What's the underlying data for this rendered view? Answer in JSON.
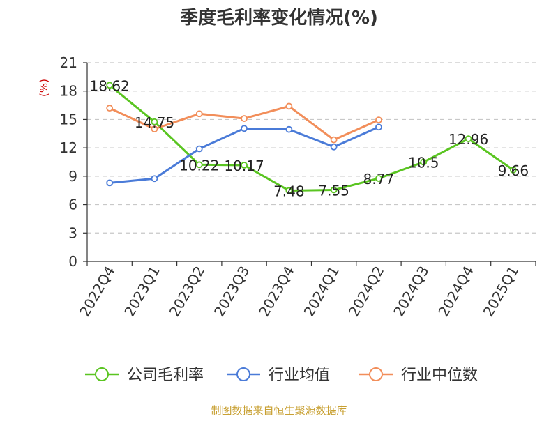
{
  "chart_data": {
    "type": "line",
    "title": "季度毛利率变化情况(%)",
    "ylabel": "(%)",
    "categories": [
      "2022Q4",
      "2023Q1",
      "2023Q2",
      "2023Q3",
      "2023Q4",
      "2024Q1",
      "2024Q2",
      "2024Q3",
      "2024Q4",
      "2025Q1"
    ],
    "ylim": [
      0,
      21
    ],
    "yticks": [
      0,
      3,
      6,
      9,
      12,
      15,
      18,
      21
    ],
    "grid": true,
    "legend_position": "bottom",
    "series": [
      {
        "name": "公司毛利率",
        "color": "#5ac521",
        "values": [
          18.62,
          14.75,
          10.22,
          10.17,
          7.48,
          7.55,
          8.77,
          10.5,
          12.96,
          9.66
        ],
        "labels": [
          "18.62",
          "14.75",
          "10.22",
          "10.17",
          "7.48",
          "7.55",
          "8.77",
          "10.5",
          "12.96",
          "9.66"
        ]
      },
      {
        "name": "行业均值",
        "color": "#4a7bd8",
        "values": [
          8.3,
          8.75,
          11.9,
          14.05,
          13.95,
          12.1,
          14.2,
          null,
          null,
          null
        ]
      },
      {
        "name": "行业中位数",
        "color": "#f28e5a",
        "values": [
          16.2,
          14.0,
          15.6,
          15.1,
          16.4,
          12.85,
          14.95,
          null,
          null,
          null
        ]
      }
    ]
  },
  "source": "制图数据来自恒生聚源数据库"
}
